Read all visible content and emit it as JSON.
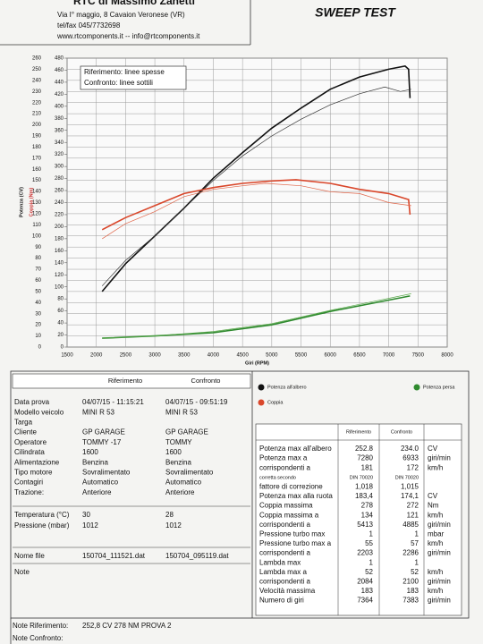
{
  "header": {
    "company": "RTC di Massimo Zanetti",
    "address": "Via I° maggio, 8 Cavaion Veronese (VR)",
    "phone": "tel/fax 045/7732698",
    "web": "www.rtcomponents.it  --  info@rtcomponents.it",
    "title": "SWEEP TEST"
  },
  "chart_data": {
    "type": "line",
    "xlabel": "Giri (RPM)",
    "ylabel": "Potenza (CV)",
    "y2label": "Coppia (Nm)",
    "xlim": [
      1500,
      8000
    ],
    "xticks": [
      1500,
      2000,
      2500,
      3000,
      3500,
      4000,
      4500,
      5000,
      5500,
      6000,
      6500,
      7000,
      7500,
      8000
    ],
    "ylim": [
      0,
      260
    ],
    "yticks": [
      0,
      10,
      20,
      30,
      40,
      50,
      60,
      70,
      80,
      90,
      100,
      110,
      120,
      130,
      140,
      150,
      160,
      170,
      180,
      190,
      200,
      210,
      220,
      230,
      240,
      250,
      260
    ],
    "y2lim": [
      0,
      480
    ],
    "y2ticks": [
      0,
      20,
      40,
      60,
      80,
      100,
      120,
      140,
      160,
      180,
      200,
      220,
      240,
      260,
      280,
      300,
      320,
      340,
      360,
      380,
      400,
      420,
      440,
      460,
      480
    ],
    "grid": true,
    "notes": [
      "Riferimento: linee spesse",
      "Confronto: linee sottili"
    ],
    "series": [
      {
        "name": "Potenza all'albero",
        "color": "#111111",
        "reference": true,
        "x": [
          2100,
          2500,
          3000,
          3500,
          4000,
          4500,
          5000,
          5500,
          6000,
          6500,
          7000,
          7280,
          7340,
          7364
        ],
        "values": [
          50,
          75,
          100,
          125,
          152,
          175,
          197,
          215,
          232,
          243,
          250,
          252.8,
          250,
          224
        ]
      },
      {
        "name": "Potenza all'albero",
        "color": "#333333",
        "reference": false,
        "x": [
          2100,
          2500,
          3000,
          3500,
          4000,
          4500,
          5000,
          5500,
          6000,
          6500,
          6933,
          7200,
          7383
        ],
        "values": [
          55,
          78,
          100,
          125,
          150,
          172,
          190,
          205,
          218,
          228,
          234,
          230,
          232
        ]
      },
      {
        "name": "Coppia",
        "color": "#d9472b",
        "reference": true,
        "axis": "y2",
        "x": [
          2100,
          2500,
          3000,
          3500,
          4000,
          4500,
          5000,
          5413,
          6000,
          6500,
          7000,
          7340,
          7364
        ],
        "values": [
          195,
          215,
          235,
          255,
          265,
          272,
          276,
          278,
          272,
          262,
          255,
          245,
          220
        ]
      },
      {
        "name": "Coppia",
        "color": "#e0664a",
        "reference": false,
        "axis": "y2",
        "x": [
          2100,
          2500,
          3000,
          3500,
          4000,
          4500,
          4885,
          5500,
          6000,
          6500,
          7000,
          7383
        ],
        "values": [
          180,
          205,
          225,
          250,
          262,
          268,
          272,
          268,
          258,
          255,
          240,
          235
        ]
      },
      {
        "name": "Potenza persa",
        "color": "#2f8a2f",
        "reference": true,
        "x": [
          2100,
          3000,
          4000,
          5000,
          6000,
          7364
        ],
        "values": [
          8,
          10,
          13,
          20,
          32,
          46
        ]
      },
      {
        "name": "Potenza persa",
        "color": "#5aa84a",
        "reference": false,
        "x": [
          2100,
          3000,
          4000,
          5000,
          6000,
          7383
        ],
        "values": [
          8,
          10,
          14,
          21,
          33,
          48
        ]
      }
    ]
  },
  "info": {
    "columns": [
      "Riferimento",
      "Confronto"
    ],
    "rows": [
      [
        "Data prova",
        "04/07/15 - 11:15:21",
        "04/07/15 - 09:51:19"
      ],
      [
        "Modello veicolo",
        "MINI R 53",
        "MINI R 53"
      ],
      [
        "Targa"
      ],
      [
        "Cliente",
        "GP GARAGE",
        "GP GARAGE"
      ],
      [
        "Operatore",
        "TOMMY -17",
        "TOMMY"
      ],
      [
        "Cilindrata",
        "1600",
        "1600"
      ],
      [
        "Alimentazione",
        "Benzina",
        "Benzina"
      ],
      [
        "Tipo motore",
        "Sovralimentato",
        "Sovralimentato"
      ],
      [
        "Contagiri",
        "Automatico",
        "Automatico"
      ],
      [
        "Trazione:",
        "Anteriore",
        "Anteriore"
      ]
    ],
    "env": [
      [
        "Temperatura (°C)",
        "30",
        "28"
      ],
      [
        "Pressione (mbar)",
        "1012",
        "1012"
      ]
    ],
    "file": [
      "Nome file",
      "150704_111521.dat",
      "150704_095119.dat"
    ],
    "note": "Note"
  },
  "results": {
    "columns": [
      "Riferimento",
      "Confronto"
    ],
    "rows": [
      [
        "Potenza max all'albero",
        "252.8",
        "234.0",
        "CV"
      ],
      [
        "Potenza max a",
        "7280",
        "6933",
        "giri/min"
      ],
      [
        "corrispondenti a",
        "181",
        "172",
        "km/h"
      ],
      [
        "corretta secondo",
        "DIN 70020",
        "DIN 70020"
      ],
      [
        "fattore di correzione",
        "1,018",
        "1,015"
      ],
      [
        "Potenza max alla ruota",
        "183,4",
        "174,1",
        "CV"
      ],
      [
        "Coppia massima",
        "278",
        "272",
        "Nm"
      ],
      [
        "Coppia massima a",
        "134",
        "121",
        "km/h"
      ],
      [
        "corrispondenti a",
        "5413",
        "4885",
        "giri/min"
      ],
      [
        "Pressione turbo max",
        "1",
        "1",
        "mbar"
      ],
      [
        "Pressione turbo max a",
        "55",
        "57",
        "km/h"
      ],
      [
        "corrispondenti a",
        "2203",
        "2286",
        "giri/min"
      ],
      [
        "Lambda max",
        "1",
        "1"
      ],
      [
        "Lambda max a",
        "52",
        "52",
        "km/h"
      ],
      [
        "corrispondenti a",
        "2084",
        "2100",
        "giri/min"
      ],
      [
        "Velocità massima",
        "183",
        "183",
        "km/h"
      ],
      [
        "Numero di giri",
        "7364",
        "7383",
        "giri/min"
      ]
    ]
  },
  "footer": {
    "note_ref_label": "Note Riferimento:",
    "note_ref": "252,8 CV 278 NM PROVA 2",
    "note_cmp_label": "Note Confronto:"
  }
}
